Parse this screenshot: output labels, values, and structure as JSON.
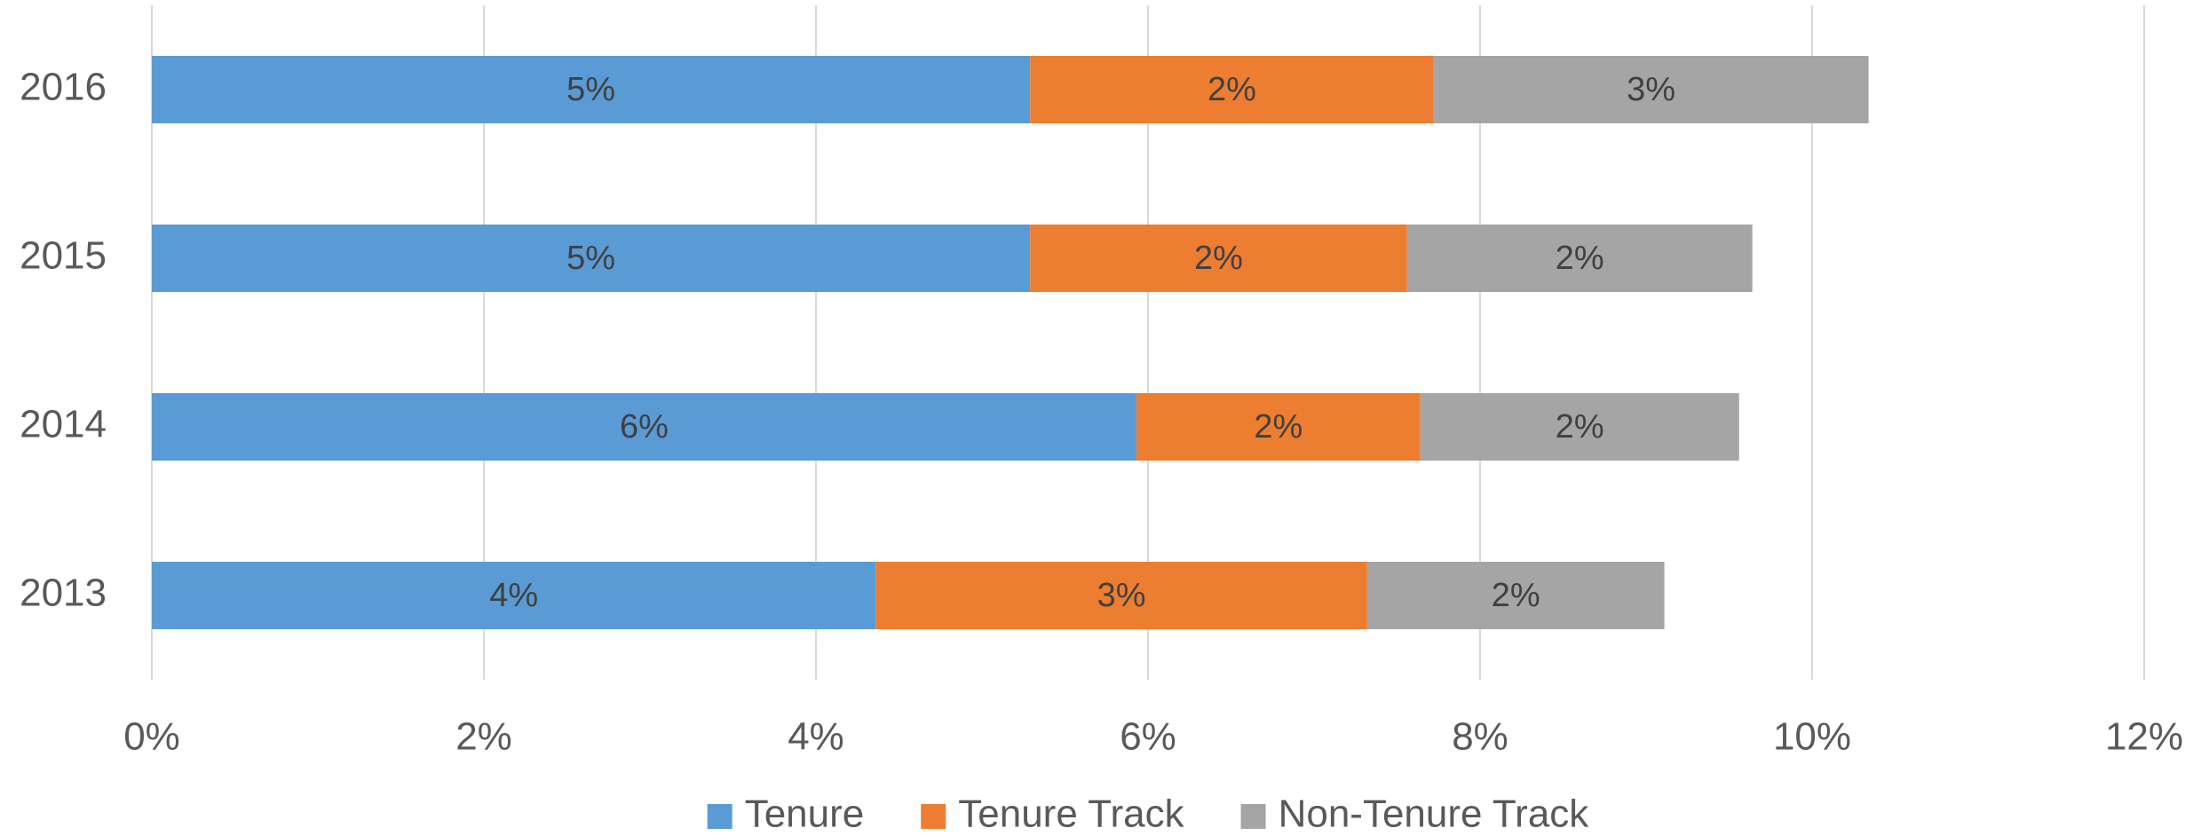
{
  "chart_data": {
    "type": "stacked-bar-horizontal",
    "categories": [
      "2013",
      "2014",
      "2015",
      "2016"
    ],
    "series": [
      {
        "name": "Tenure",
        "color": "#5b9bd5",
        "values": [
          4.36,
          5.93,
          5.29,
          5.29
        ],
        "value_labels": [
          "4%",
          "6%",
          "5%",
          "5%"
        ]
      },
      {
        "name": "Tenure Track",
        "color": "#ed7d31",
        "values": [
          2.96,
          1.71,
          2.27,
          2.43
        ],
        "value_labels": [
          "3%",
          "2%",
          "2%",
          "2%"
        ]
      },
      {
        "name": "Non-Tenure Track",
        "color": "#a5a5a5",
        "values": [
          1.79,
          1.92,
          2.08,
          2.62
        ],
        "value_labels": [
          "2%",
          "2%",
          "2%",
          "3%"
        ]
      }
    ],
    "xlim": [
      0,
      12
    ],
    "xticks": [
      {
        "value": 0,
        "label": "0%"
      },
      {
        "value": 2,
        "label": "2%"
      },
      {
        "value": 4,
        "label": "4%"
      },
      {
        "value": 6,
        "label": "6%"
      },
      {
        "value": 8,
        "label": "8%"
      },
      {
        "value": 10,
        "label": "10%"
      },
      {
        "value": 12,
        "label": "12%"
      }
    ],
    "grid": true,
    "legend": "bottom"
  }
}
